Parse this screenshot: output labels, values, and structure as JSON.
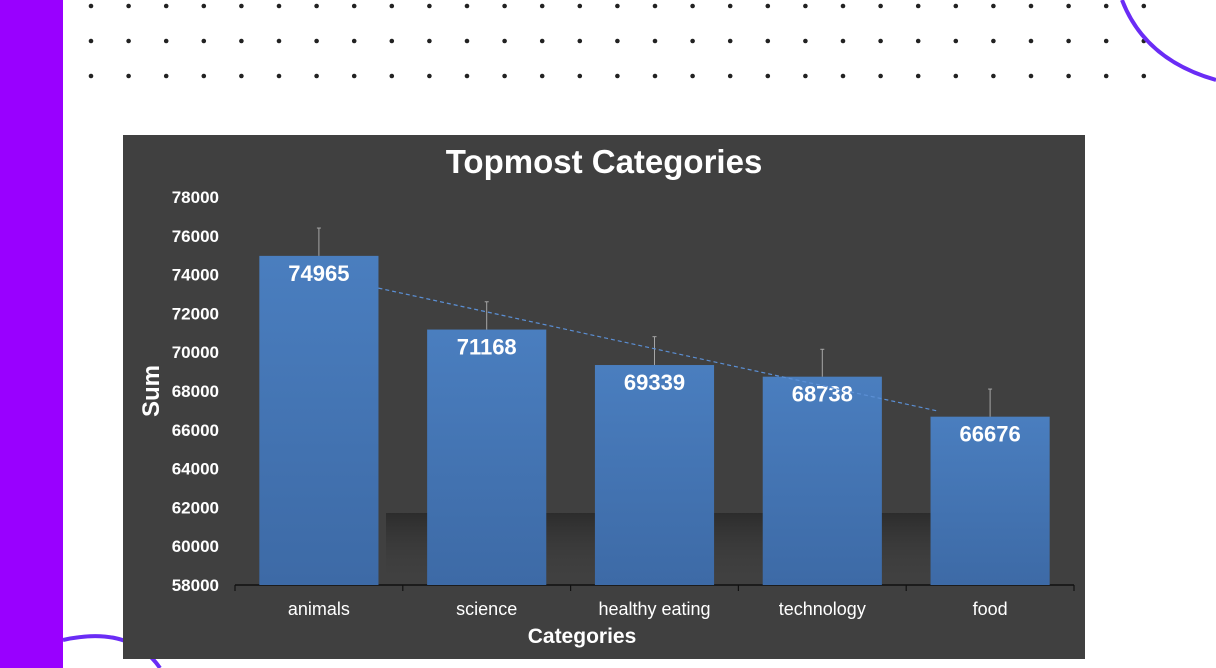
{
  "theme": {
    "sidebar_color": "#9900ff",
    "accent_arc_color": "#6a2cf5",
    "dot_color": "#222222",
    "chart_background": "#404040",
    "bar_color_top": "#4a7ebf",
    "bar_color_bottom": "#3d6aa6",
    "text_color": "#ffffff",
    "trendline_color": "#5b8fd4",
    "error_bar_color": "#a6a6a6"
  },
  "chart_data": {
    "type": "bar",
    "title": "Topmost Categories",
    "xlabel": "Categories",
    "ylabel": "Sum",
    "categories": [
      "animals",
      "science",
      "healthy eating",
      "technology",
      "food"
    ],
    "values": [
      74965,
      71168,
      69339,
      68738,
      66676
    ],
    "data_labels": [
      "74965",
      "71168",
      "69339",
      "68738",
      "66676"
    ],
    "error_bar_upper": [
      76400,
      72600,
      70800,
      70150,
      68100
    ],
    "ylim": [
      58000,
      78000
    ],
    "yticks": [
      "78000",
      "76000",
      "74000",
      "72000",
      "70000",
      "68000",
      "66000",
      "64000",
      "62000",
      "60000",
      "58000"
    ],
    "trendline": "linear, dashed",
    "grid": false,
    "legend": "none"
  }
}
